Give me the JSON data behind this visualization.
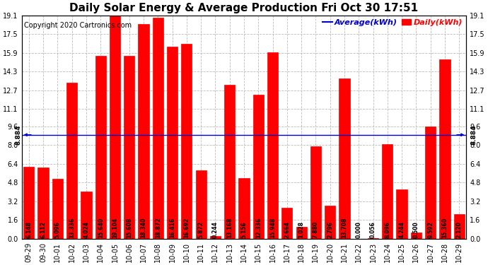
{
  "title": "Daily Solar Energy & Average Production Fri Oct 30 17:51",
  "copyright": "Copyright 2020 Cartronics.com",
  "legend_average": "Average(kWh)",
  "legend_daily": "Daily(kWh)",
  "average_value": 8.884,
  "categories": [
    "09-29",
    "09-30",
    "10-01",
    "10-02",
    "10-03",
    "10-04",
    "10-05",
    "10-06",
    "10-07",
    "10-08",
    "10-09",
    "10-10",
    "10-11",
    "10-12",
    "10-13",
    "10-14",
    "10-15",
    "10-16",
    "10-17",
    "10-18",
    "10-19",
    "10-20",
    "10-21",
    "10-22",
    "10-23",
    "10-24",
    "10-25",
    "10-26",
    "10-27",
    "10-28",
    "10-29"
  ],
  "values": [
    6.148,
    6.112,
    5.096,
    13.336,
    4.024,
    15.64,
    19.104,
    15.608,
    18.34,
    18.872,
    16.416,
    16.692,
    5.872,
    0.244,
    13.168,
    5.156,
    12.336,
    15.948,
    2.664,
    1.028,
    7.88,
    2.796,
    13.708,
    0.0,
    0.056,
    8.096,
    4.244,
    0.5,
    9.592,
    15.36,
    2.12
  ],
  "bar_color": "#FF0000",
  "average_line_color": "#0000CD",
  "background_color": "#FFFFFF",
  "plot_bg_color": "#FFFFFF",
  "grid_color": "#BBBBBB",
  "title_color": "#000000",
  "copyright_color": "#000000",
  "bar_label_color": "#000000",
  "average_label_color": "#000000",
  "ylim": [
    0.0,
    19.1
  ],
  "yticks": [
    0.0,
    1.6,
    3.2,
    4.8,
    6.4,
    8.0,
    9.6,
    11.1,
    12.7,
    14.3,
    15.9,
    17.5,
    19.1
  ],
  "title_fontsize": 11,
  "copyright_fontsize": 7,
  "bar_label_fontsize": 5.5,
  "tick_fontsize": 7,
  "average_label_fontsize": 6.5,
  "legend_fontsize": 8
}
